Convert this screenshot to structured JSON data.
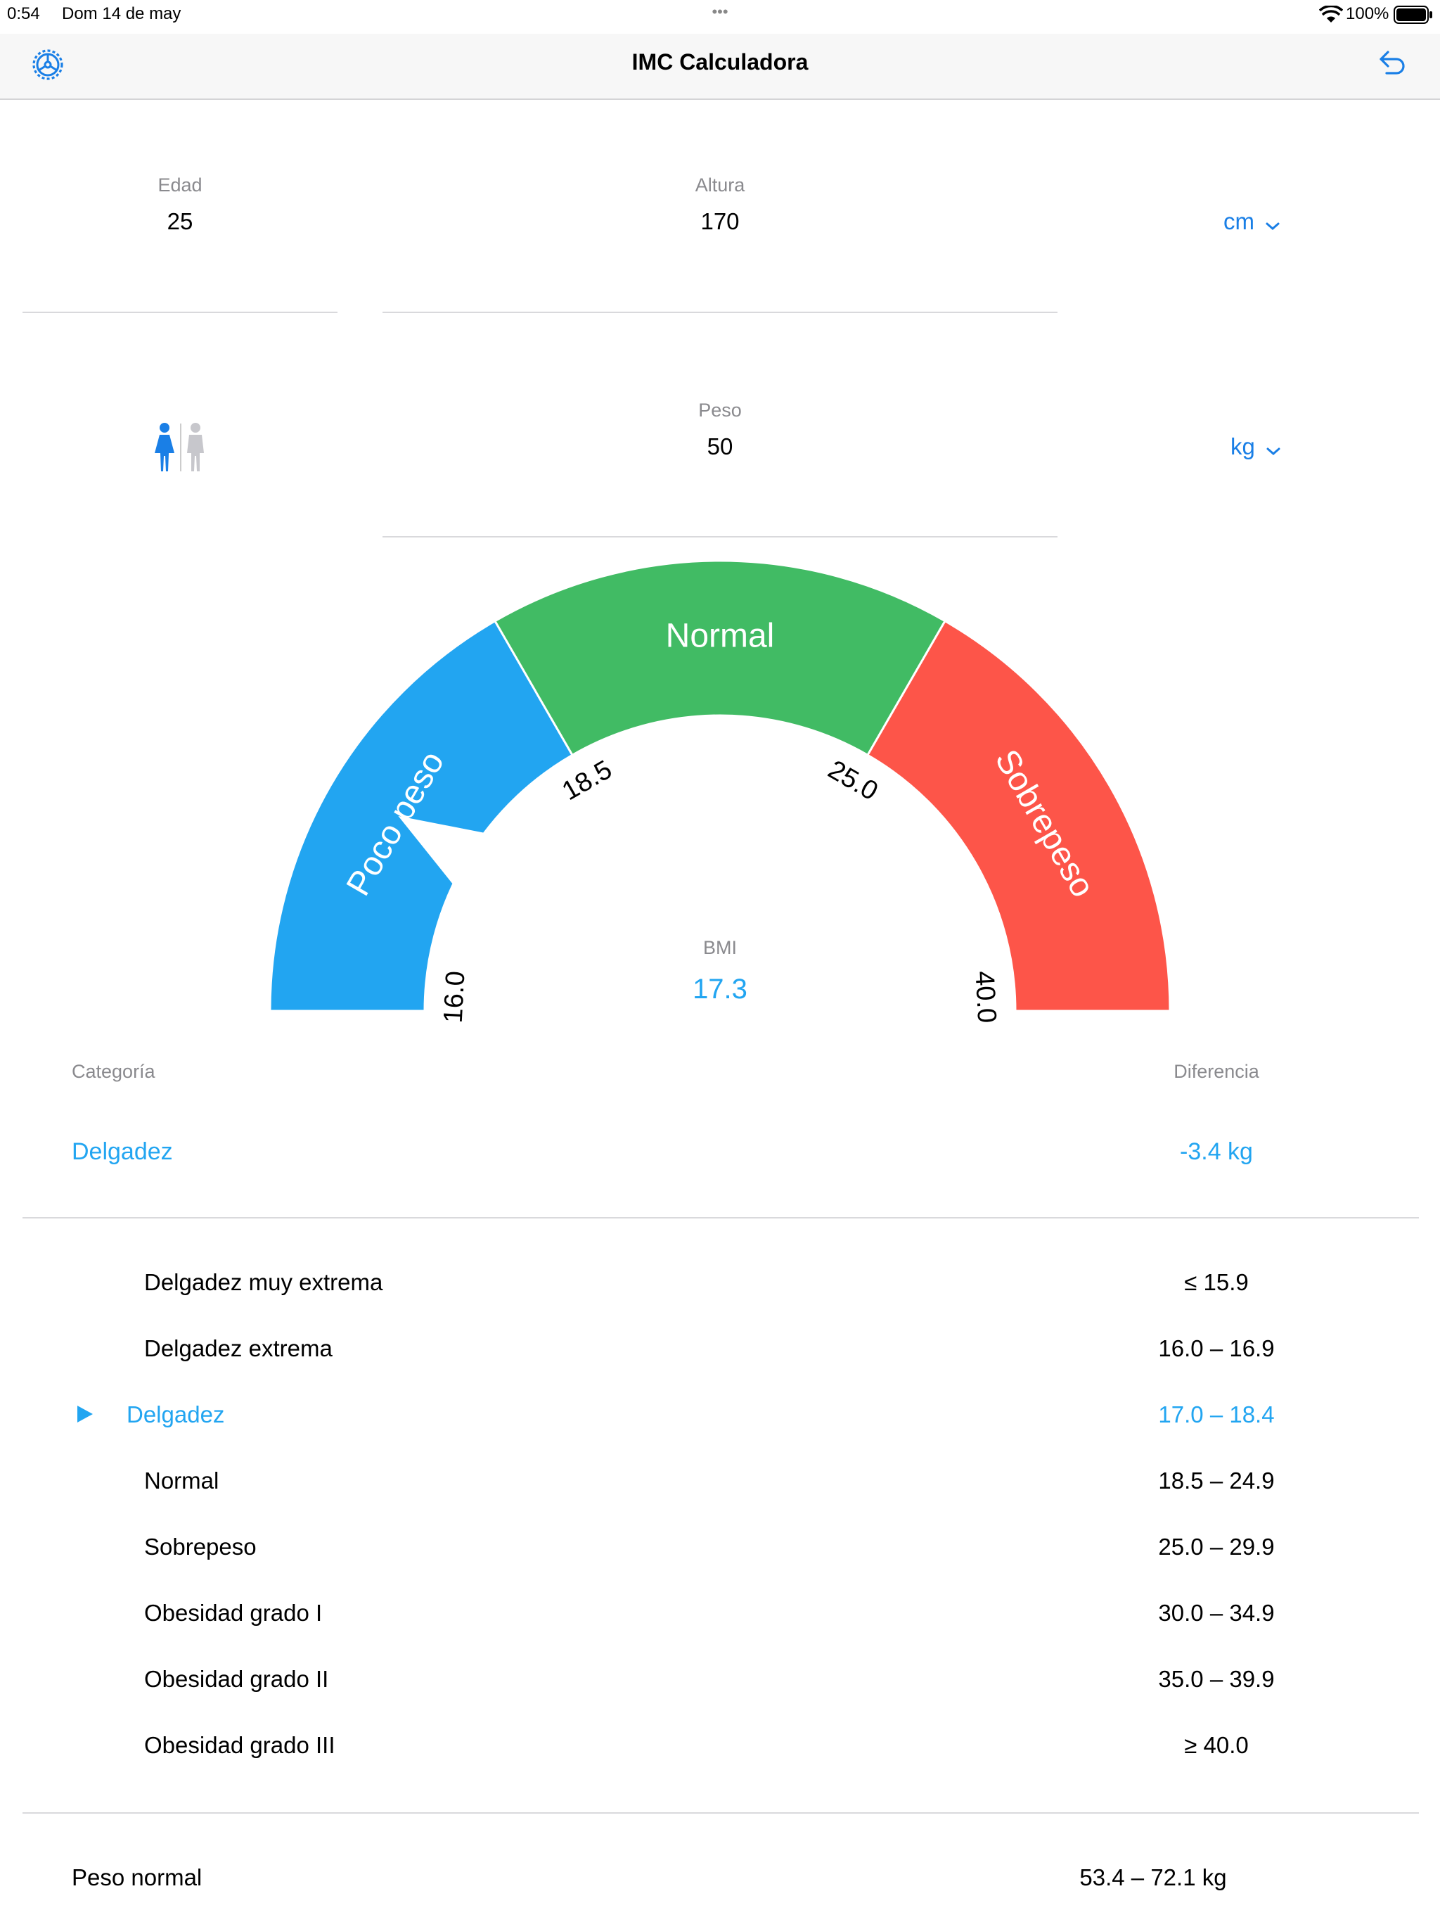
{
  "status_bar": {
    "time": "0:54",
    "date": "Dom 14 de may",
    "dots": "•••",
    "battery": "100%"
  },
  "nav": {
    "title": "IMC Calculadora",
    "settings_icon": "gear-icon",
    "undo_icon": "undo-icon"
  },
  "inputs": {
    "edad": {
      "label": "Edad",
      "value": "25"
    },
    "altura": {
      "label": "Altura",
      "value": "170",
      "unit": "cm"
    },
    "peso": {
      "label": "Peso",
      "value": "50",
      "unit": "kg"
    },
    "gender": {
      "selected": "female",
      "options": [
        "female",
        "male"
      ]
    }
  },
  "gauge": {
    "segments": [
      {
        "label": "Poco peso",
        "color": "#22a5f1"
      },
      {
        "label": "Normal",
        "color": "#41bb64"
      },
      {
        "label": "Sobrepeso",
        "color": "#fd5549"
      }
    ],
    "ticks": [
      "16.0",
      "18.5",
      "25.0",
      "40.0"
    ],
    "bmi_label": "BMI",
    "bmi_value": "17.3"
  },
  "result": {
    "categoria_label": "Categoría",
    "categoria_value": "Delgadez",
    "diferencia_label": "Diferencia",
    "diferencia_value": "-3.4 kg"
  },
  "categories": [
    {
      "label": "Delgadez muy extrema",
      "range": "≤ 15.9",
      "active": false
    },
    {
      "label": "Delgadez extrema",
      "range": "16.0 – 16.9",
      "active": false
    },
    {
      "label": "Delgadez",
      "range": "17.0 – 18.4",
      "active": true
    },
    {
      "label": "Normal",
      "range": "18.5 – 24.9",
      "active": false
    },
    {
      "label": "Sobrepeso",
      "range": "25.0 – 29.9",
      "active": false
    },
    {
      "label": "Obesidad grado I",
      "range": "30.0 – 34.9",
      "active": false
    },
    {
      "label": "Obesidad grado II",
      "range": "35.0 – 39.9",
      "active": false
    },
    {
      "label": "Obesidad grado III",
      "range": "≥ 40.0",
      "active": false
    }
  ],
  "peso_normal": {
    "label": "Peso normal",
    "value": "53.4 – 72.1 kg"
  },
  "colors": {
    "accent": "#1a7fe6",
    "active": "#22a5f1"
  }
}
